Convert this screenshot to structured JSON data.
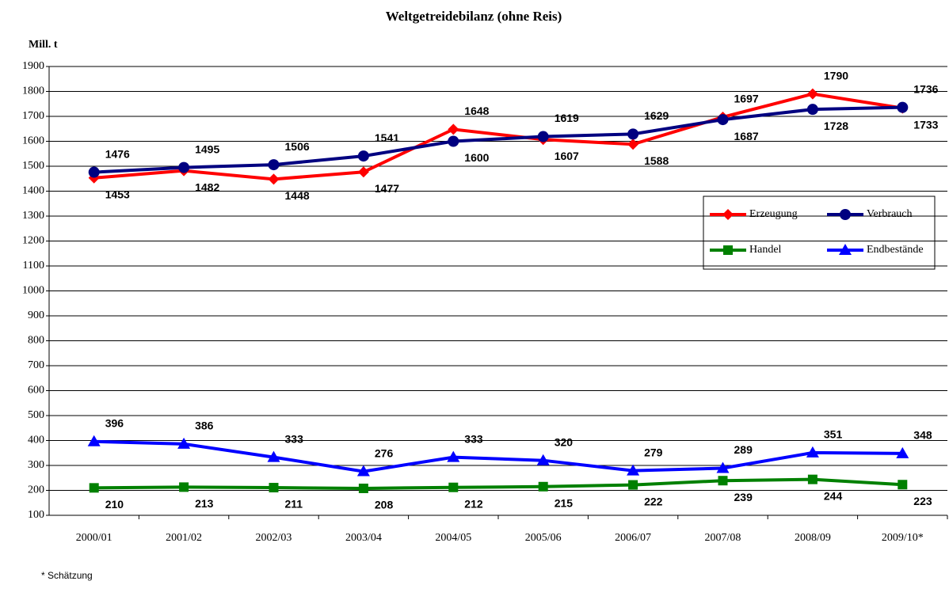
{
  "chart_data": {
    "type": "line",
    "title": "Weltgetreidebilanz (ohne Reis)",
    "y_label": "Mill. t",
    "footnote": "* Schätzung",
    "categories": [
      "2000/01",
      "2001/02",
      "2002/03",
      "2003/04",
      "2004/05",
      "2005/06",
      "2006/07",
      "2007/08",
      "2008/09",
      "2009/10*"
    ],
    "series": [
      {
        "name": "Erzeugung",
        "color": "#ff0000",
        "marker": "diamond",
        "values": [
          1453,
          1482,
          1448,
          1477,
          1648,
          1607,
          1588,
          1697,
          1790,
          1733
        ]
      },
      {
        "name": "Verbrauch",
        "color": "#000080",
        "marker": "circle",
        "values": [
          1476,
          1495,
          1506,
          1541,
          1600,
          1619,
          1629,
          1687,
          1728,
          1736
        ]
      },
      {
        "name": "Handel",
        "color": "#008000",
        "marker": "square",
        "values": [
          210,
          213,
          211,
          208,
          212,
          215,
          222,
          239,
          244,
          223
        ]
      },
      {
        "name": "Endbestände",
        "color": "#0000ff",
        "marker": "triangle",
        "values": [
          396,
          386,
          333,
          276,
          333,
          320,
          279,
          289,
          351,
          348
        ]
      }
    ],
    "ylim": [
      100,
      1900
    ],
    "yticks": [
      100,
      200,
      300,
      400,
      500,
      600,
      700,
      800,
      900,
      1000,
      1100,
      1200,
      1300,
      1400,
      1500,
      1600,
      1700,
      1800,
      1900
    ],
    "grid": true
  }
}
